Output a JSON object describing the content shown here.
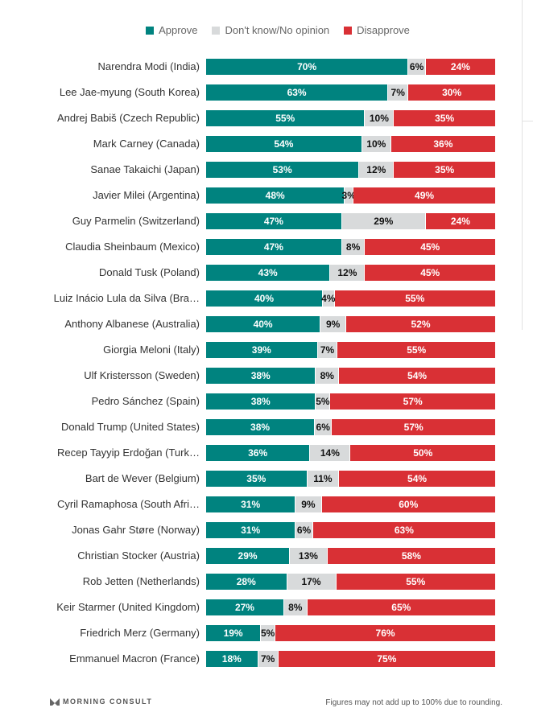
{
  "legend": [
    {
      "label": "Approve",
      "color": "#00837f"
    },
    {
      "label": "Don't know/No opinion",
      "color": "#d8dadb"
    },
    {
      "label": "Disapprove",
      "color": "#d93035"
    }
  ],
  "chart_data": {
    "type": "bar",
    "orientation": "horizontal",
    "stacked": true,
    "legend_position": "top",
    "categories": [
      "Narendra Modi (India)",
      "Lee Jae-myung (South Korea)",
      "Andrej Babiš (Czech Republic)",
      "Mark Carney (Canada)",
      "Sanae Takaichi (Japan)",
      "Javier Milei (Argentina)",
      "Guy Parmelin (Switzerland)",
      "Claudia Sheinbaum (Mexico)",
      "Donald Tusk (Poland)",
      "Luiz Inácio Lula da Silva (Bra…",
      "Anthony Albanese (Australia)",
      "Giorgia Meloni (Italy)",
      "Ulf Kristersson (Sweden)",
      "Pedro Sánchez (Spain)",
      "Donald Trump (United States)",
      "Recep Tayyip Erdoğan (Turk…",
      "Bart de Wever (Belgium)",
      "Cyril Ramaphosa (South Afri…",
      "Jonas Gahr Støre (Norway)",
      "Christian Stocker (Austria)",
      "Rob Jetten (Netherlands)",
      "Keir Starmer (United Kingdom)",
      "Friedrich Merz (Germany)",
      "Emmanuel Macron (France)"
    ],
    "series": [
      {
        "name": "Approve",
        "values": [
          70,
          63,
          55,
          54,
          53,
          48,
          47,
          47,
          43,
          40,
          40,
          39,
          38,
          38,
          38,
          36,
          35,
          31,
          31,
          29,
          28,
          27,
          19,
          18
        ]
      },
      {
        "name": "Don't know/No opinion",
        "values": [
          6,
          7,
          10,
          10,
          12,
          3,
          29,
          8,
          12,
          4,
          9,
          7,
          8,
          5,
          6,
          14,
          11,
          9,
          6,
          13,
          17,
          8,
          5,
          7
        ]
      },
      {
        "name": "Disapprove",
        "values": [
          24,
          30,
          35,
          36,
          35,
          49,
          24,
          45,
          45,
          55,
          52,
          55,
          54,
          57,
          57,
          50,
          54,
          60,
          63,
          58,
          55,
          65,
          76,
          75
        ]
      }
    ],
    "unit": "%"
  },
  "footer": {
    "logo": "MORNING CONSULT",
    "note": "Figures may not add up to 100% due to rounding."
  }
}
